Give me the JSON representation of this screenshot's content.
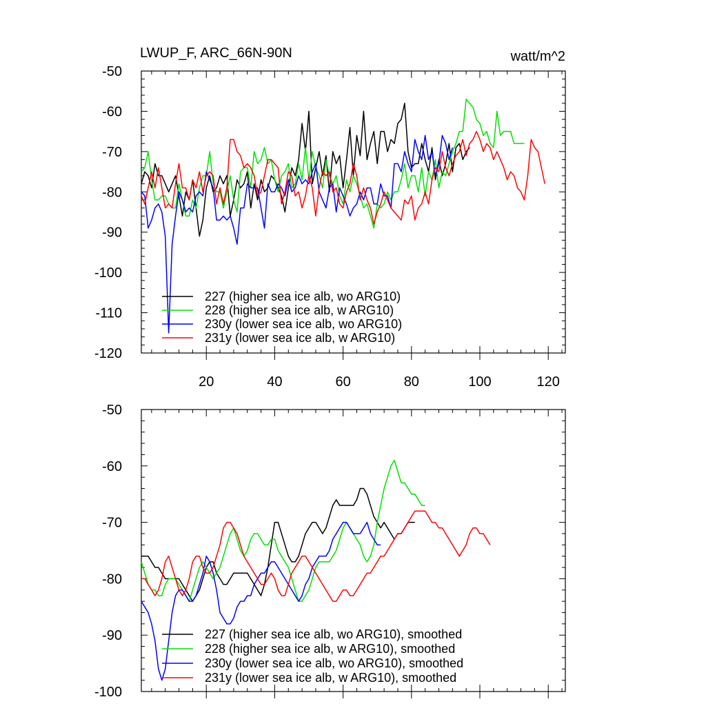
{
  "chart_data": [
    {
      "type": "line",
      "title": "LWUP_F, ARC_66N-90N",
      "units": "watt/m^2",
      "xlim": [
        1,
        125
      ],
      "ylim": [
        -120,
        -50
      ],
      "xticks": [
        20,
        40,
        60,
        80,
        100,
        120
      ],
      "yticks": [
        -50,
        -60,
        -70,
        -80,
        -90,
        -100,
        -110,
        -120
      ],
      "series": [
        {
          "name": "227 (higher sea ice alb, wo ARG10)",
          "color": "#000000",
          "x_start": 1,
          "values": [
            -78,
            -75,
            -76,
            -79,
            -73,
            -76,
            -76,
            -78,
            -80,
            -78,
            -76,
            -81,
            -86,
            -80,
            -82,
            -77,
            -84,
            -91,
            -87,
            -79,
            -76,
            -80,
            -79,
            -76,
            -78,
            -76,
            -86,
            -82,
            -77,
            -79,
            -78,
            -75,
            -84,
            -78,
            -82,
            -77,
            -80,
            -79,
            -76,
            -77,
            -79,
            -81,
            -85,
            -79,
            -74,
            -76,
            -72,
            -63,
            -70,
            -60,
            -78,
            -74,
            -70,
            -76,
            -71,
            -80,
            -70,
            -73,
            -71,
            -79,
            -72,
            -64,
            -76,
            -66,
            -71,
            -60,
            -72,
            -68,
            -65,
            -73,
            -65,
            -65,
            -70,
            -67,
            -68,
            -63,
            -62,
            -58,
            -70,
            -74,
            -73,
            -73,
            -68,
            -72,
            -75,
            -69,
            -77,
            -72,
            -76,
            -73,
            -68,
            -75,
            -69,
            -68,
            -72,
            -70,
            -69
          ]
        },
        {
          "name": "228 (higher sea ice alb, w ARG10)",
          "color": "#00e000",
          "x_start": 1,
          "values": [
            -75,
            -74,
            -70,
            -77,
            -82,
            -82,
            -81,
            -81,
            -83,
            -84,
            -84,
            -78,
            -82,
            -86,
            -86,
            -82,
            -84,
            -79,
            -76,
            -76,
            -70,
            -78,
            -80,
            -80,
            -84,
            -80,
            -76,
            -82,
            -85,
            -75,
            -74,
            -74,
            -79,
            -70,
            -73,
            -72,
            -69,
            -73,
            -72,
            -77,
            -80,
            -76,
            -75,
            -73,
            -79,
            -78,
            -73,
            -77,
            -69,
            -77,
            -70,
            -74,
            -76,
            -79,
            -72,
            -76,
            -78,
            -76,
            -81,
            -83,
            -77,
            -80,
            -76,
            -78,
            -81,
            -84,
            -83,
            -86,
            -89,
            -83,
            -84,
            -83,
            -80,
            -82,
            -80,
            -80,
            -77,
            -73,
            -79,
            -76,
            -76,
            -80,
            -74,
            -81,
            -75,
            -77,
            -72,
            -79,
            -75,
            -76,
            -73,
            -70,
            -68,
            -65,
            -65,
            -57,
            -58,
            -59,
            -62,
            -63,
            -66,
            -65,
            -68,
            -69,
            -60,
            -66,
            -65,
            -65,
            -65,
            -68,
            -68,
            -68,
            -68
          ]
        },
        {
          "name": "230y (lower sea ice alb, wo ARG10)",
          "color": "#0000ff",
          "x_start": 1,
          "values": [
            -80,
            -81,
            -89,
            -87,
            -84,
            -83,
            -85,
            -91,
            -115,
            -93,
            -86,
            -80,
            -82,
            -85,
            -84,
            -85,
            -81,
            -80,
            -81,
            -75,
            -77,
            -79,
            -87,
            -87,
            -86,
            -87,
            -86,
            -89,
            -93,
            -84,
            -84,
            -78,
            -79,
            -79,
            -79,
            -84,
            -89,
            -78,
            -80,
            -80,
            -78,
            -79,
            -81,
            -77,
            -80,
            -79,
            -76,
            -78,
            -77,
            -78,
            -75,
            -73,
            -80,
            -82,
            -84,
            -79,
            -78,
            -85,
            -79,
            -81,
            -83,
            -86,
            -84,
            -83,
            -80,
            -82,
            -79,
            -79,
            -83,
            -83,
            -78,
            -81,
            -81,
            -84,
            -73,
            -73,
            -75,
            -70,
            -73,
            -75,
            -67,
            -70,
            -72,
            -66,
            -72,
            -70,
            -76,
            -73,
            -66,
            -68,
            -72,
            -69
          ]
        },
        {
          "name": "231y (lower sea ice alb, w ARG10)",
          "color": "#ff0000",
          "x_start": 1,
          "values": [
            -81,
            -83,
            -79,
            -75,
            -79,
            -74,
            -79,
            -84,
            -83,
            -84,
            -78,
            -73,
            -79,
            -79,
            -82,
            -77,
            -79,
            -75,
            -80,
            -76,
            -75,
            -76,
            -83,
            -79,
            -83,
            -79,
            -67,
            -67,
            -70,
            -71,
            -74,
            -73,
            -74,
            -76,
            -81,
            -80,
            -76,
            -72,
            -72,
            -73,
            -74,
            -83,
            -80,
            -75,
            -76,
            -81,
            -80,
            -84,
            -81,
            -76,
            -79,
            -86,
            -79,
            -75,
            -76,
            -75,
            -80,
            -79,
            -83,
            -84,
            -80,
            -78,
            -73,
            -76,
            -82,
            -79,
            -82,
            -84,
            -88,
            -85,
            -83,
            -80,
            -82,
            -84,
            -85,
            -86,
            -87,
            -82,
            -83,
            -81,
            -87,
            -84,
            -83,
            -80,
            -83,
            -77,
            -74,
            -75,
            -70,
            -74,
            -76,
            -73,
            -71,
            -70,
            -67,
            -71,
            -68,
            -67,
            -65,
            -67,
            -70,
            -68,
            -69,
            -72,
            -70,
            -72,
            -74,
            -77,
            -75,
            -76,
            -79,
            -80,
            -82,
            -76,
            -67,
            -69,
            -70,
            -74,
            -78
          ]
        }
      ]
    },
    {
      "type": "line",
      "title": "",
      "xlim": [
        1,
        125
      ],
      "ylim": [
        -100,
        -50
      ],
      "yticks": [
        -50,
        -60,
        -70,
        -80,
        -90,
        -100
      ],
      "series": [
        {
          "name": "227 (higher sea ice alb, wo ARG10), smoothed",
          "color": "#000000",
          "x_start": 1,
          "values": [
            -76,
            -76,
            -76,
            -77,
            -78,
            -78,
            -79,
            -80,
            -80,
            -80,
            -80,
            -80,
            -81,
            -82,
            -83,
            -84,
            -83,
            -82,
            -80,
            -78,
            -77,
            -77,
            -79,
            -80,
            -81,
            -81,
            -80,
            -79,
            -79,
            -79,
            -79,
            -79,
            -80,
            -81,
            -82,
            -83,
            -81,
            -78,
            -74,
            -70,
            -70,
            -72,
            -74,
            -76,
            -77,
            -77,
            -76,
            -74,
            -72,
            -71,
            -70,
            -70,
            -71,
            -72,
            -71,
            -69,
            -67,
            -66,
            -67,
            -67,
            -67,
            -67,
            -67,
            -66,
            -64,
            -64,
            -65,
            -67,
            -69,
            -70,
            -71,
            -70,
            -71,
            -72,
            -73,
            -72,
            -72,
            -71,
            -70,
            -70,
            -70
          ]
        },
        {
          "name": "228 (higher sea ice alb, w ARG10), smoothed",
          "color": "#00e000",
          "x_start": 1,
          "values": [
            -77,
            -79,
            -81,
            -82,
            -82,
            -83,
            -83,
            -81,
            -80,
            -80,
            -80,
            -81,
            -82,
            -83,
            -84,
            -82,
            -80,
            -78,
            -77,
            -78,
            -79,
            -80,
            -79,
            -78,
            -76,
            -74,
            -72,
            -71,
            -73,
            -75,
            -76,
            -75,
            -73,
            -72,
            -72,
            -73,
            -74,
            -74,
            -73,
            -73,
            -75,
            -76,
            -77,
            -78,
            -80,
            -82,
            -84,
            -84,
            -83,
            -82,
            -80,
            -78,
            -77,
            -77,
            -77,
            -77,
            -76,
            -75,
            -73,
            -71,
            -70,
            -71,
            -72,
            -73,
            -74,
            -76,
            -77,
            -76,
            -74,
            -70,
            -67,
            -64,
            -62,
            -60,
            -59,
            -61,
            -63,
            -63,
            -64,
            -65,
            -65,
            -66,
            -67,
            -67
          ]
        },
        {
          "name": "230y (lower sea ice alb, wo ARG10), smoothed",
          "color": "#0000ff",
          "x_start": 1,
          "values": [
            -84,
            -85,
            -86,
            -88,
            -91,
            -96,
            -98,
            -96,
            -91,
            -86,
            -83,
            -82,
            -82,
            -83,
            -84,
            -84,
            -83,
            -81,
            -79,
            -76,
            -77,
            -79,
            -82,
            -86,
            -87,
            -88,
            -88,
            -87,
            -85,
            -84,
            -84,
            -83,
            -83,
            -81,
            -80,
            -79,
            -79,
            -78,
            -77,
            -77,
            -78,
            -79,
            -80,
            -81,
            -82,
            -83,
            -84,
            -83,
            -81,
            -80,
            -78,
            -77,
            -76,
            -76,
            -76,
            -75,
            -73,
            -72,
            -71,
            -70,
            -70,
            -71,
            -72,
            -72,
            -72,
            -71,
            -70,
            -72,
            -73,
            -74,
            -74
          ]
        },
        {
          "name": "231y (lower sea ice alb, w ARG10), smoothed",
          "color": "#ff0000",
          "x_start": 1,
          "values": [
            -80,
            -80,
            -81,
            -82,
            -83,
            -82,
            -80,
            -77,
            -76,
            -78,
            -80,
            -82,
            -83,
            -82,
            -80,
            -77,
            -76,
            -76,
            -78,
            -79,
            -79,
            -78,
            -76,
            -74,
            -71,
            -70,
            -70,
            -71,
            -72,
            -74,
            -76,
            -77,
            -78,
            -79,
            -80,
            -81,
            -81,
            -80,
            -79,
            -80,
            -82,
            -83,
            -83,
            -81,
            -79,
            -78,
            -77,
            -76,
            -76,
            -77,
            -78,
            -79,
            -80,
            -81,
            -82,
            -83,
            -84,
            -84,
            -83,
            -82,
            -82,
            -83,
            -83,
            -82,
            -81,
            -80,
            -79,
            -79,
            -78,
            -77,
            -76,
            -76,
            -75,
            -74,
            -73,
            -72,
            -72,
            -71,
            -70,
            -69,
            -68,
            -68,
            -68,
            -68,
            -69,
            -70,
            -70,
            -71,
            -71,
            -72,
            -73,
            -74,
            -75,
            -76,
            -75,
            -74,
            -72,
            -71,
            -71,
            -72,
            -72,
            -73,
            -74
          ]
        }
      ]
    }
  ]
}
